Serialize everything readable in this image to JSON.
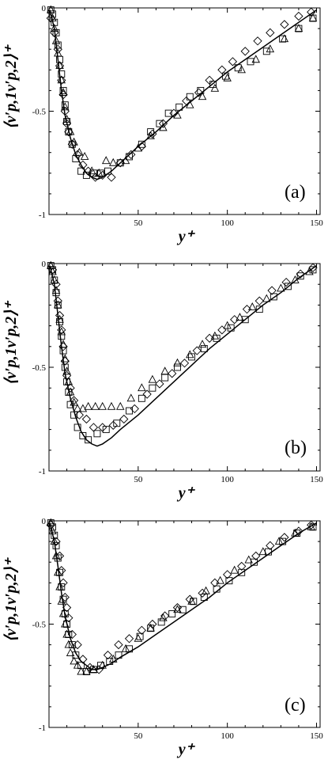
{
  "chart_data": [
    {
      "type": "scatter",
      "panel_label": "(a)",
      "xlabel": "y⁺",
      "ylabel": "⟨v′p,1v′p,2⟩⁺",
      "xlim": [
        0,
        152
      ],
      "ylim": [
        -1,
        0
      ],
      "x_ticks": [
        50,
        100,
        150
      ],
      "y_ticks": [
        0,
        -0.5,
        -1
      ],
      "y_tick_labels": [
        "0",
        "-0.5",
        "-1"
      ],
      "grid": false,
      "legend": "none",
      "line": {
        "x": [
          0.5,
          3,
          5,
          7,
          9,
          12,
          15,
          18,
          21,
          24,
          27,
          30,
          35,
          40,
          50,
          60,
          70,
          80,
          90,
          100,
          110,
          120,
          130,
          140,
          150
        ],
        "y": [
          -0.01,
          -0.1,
          -0.25,
          -0.4,
          -0.52,
          -0.63,
          -0.71,
          -0.76,
          -0.8,
          -0.82,
          -0.83,
          -0.82,
          -0.79,
          -0.75,
          -0.67,
          -0.6,
          -0.52,
          -0.45,
          -0.38,
          -0.31,
          -0.25,
          -0.19,
          -0.13,
          -0.07,
          -0.01
        ]
      },
      "series": [
        {
          "marker": "square",
          "x": [
            1,
            2,
            3,
            4,
            5,
            6,
            7,
            8,
            9,
            10,
            11,
            13,
            15,
            18,
            21,
            25,
            29,
            33,
            40,
            45,
            52,
            57,
            62,
            67,
            73,
            79,
            85,
            92,
            99,
            106,
            113,
            122,
            131,
            140,
            148
          ],
          "y": [
            -0.01,
            -0.03,
            -0.07,
            -0.12,
            -0.18,
            -0.25,
            -0.32,
            -0.4,
            -0.47,
            -0.55,
            -0.6,
            -0.66,
            -0.73,
            -0.79,
            -0.81,
            -0.8,
            -0.8,
            -0.79,
            -0.75,
            -0.72,
            -0.66,
            -0.6,
            -0.56,
            -0.51,
            -0.48,
            -0.43,
            -0.4,
            -0.37,
            -0.33,
            -0.29,
            -0.26,
            -0.21,
            -0.15,
            -0.1,
            -0.05
          ]
        },
        {
          "marker": "triangle",
          "x": [
            1,
            2,
            3,
            4,
            5,
            6,
            7,
            8,
            9,
            10,
            12,
            14,
            17,
            20,
            24,
            28,
            32,
            36,
            43,
            50,
            57,
            64,
            72,
            79,
            86,
            93,
            100,
            108,
            116,
            124,
            132,
            140,
            148
          ],
          "y": [
            -0.01,
            -0.05,
            -0.1,
            -0.16,
            -0.22,
            -0.28,
            -0.35,
            -0.41,
            -0.48,
            -0.54,
            -0.6,
            -0.65,
            -0.7,
            -0.72,
            -0.79,
            -0.8,
            -0.74,
            -0.75,
            -0.74,
            -0.68,
            -0.62,
            -0.58,
            -0.52,
            -0.47,
            -0.43,
            -0.39,
            -0.34,
            -0.3,
            -0.25,
            -0.2,
            -0.15,
            -0.1,
            -0.05
          ]
        },
        {
          "marker": "diamond",
          "x": [
            1,
            3,
            5,
            6,
            7,
            8,
            9,
            10,
            11,
            13,
            16,
            19,
            22,
            26,
            30,
            35,
            40,
            46,
            52,
            58,
            64,
            70,
            77,
            84,
            90,
            97,
            103,
            110,
            117,
            124,
            132,
            140,
            147
          ],
          "y": [
            -0.05,
            -0.12,
            -0.2,
            -0.28,
            -0.35,
            -0.42,
            -0.5,
            -0.56,
            -0.6,
            -0.66,
            -0.71,
            -0.76,
            -0.79,
            -0.82,
            -0.81,
            -0.82,
            -0.75,
            -0.71,
            -0.67,
            -0.61,
            -0.56,
            -0.51,
            -0.45,
            -0.41,
            -0.35,
            -0.3,
            -0.26,
            -0.21,
            -0.16,
            -0.12,
            -0.08,
            -0.04,
            -0.02
          ]
        }
      ]
    },
    {
      "type": "scatter",
      "panel_label": "(b)",
      "xlabel": "y⁺",
      "ylabel": "⟨v′p,1v′p,2⟩⁺",
      "xlim": [
        0,
        152
      ],
      "ylim": [
        -1,
        0
      ],
      "x_ticks": [
        50,
        100,
        150
      ],
      "y_ticks": [
        0,
        -0.5,
        -1
      ],
      "y_tick_labels": [
        "0",
        "-0.5",
        "-1"
      ],
      "grid": false,
      "legend": "none",
      "line": {
        "x": [
          0.5,
          3,
          5,
          7,
          9,
          12,
          15,
          18,
          21,
          24,
          27,
          30,
          35,
          40,
          50,
          60,
          70,
          80,
          90,
          100,
          110,
          120,
          130,
          140,
          150
        ],
        "y": [
          -0.01,
          -0.1,
          -0.25,
          -0.4,
          -0.53,
          -0.65,
          -0.74,
          -0.81,
          -0.85,
          -0.87,
          -0.88,
          -0.87,
          -0.84,
          -0.8,
          -0.73,
          -0.65,
          -0.57,
          -0.49,
          -0.41,
          -0.34,
          -0.27,
          -0.2,
          -0.14,
          -0.07,
          -0.01
        ]
      },
      "series": [
        {
          "marker": "square",
          "x": [
            1,
            2,
            3,
            4,
            5,
            6,
            7,
            8,
            9,
            10,
            11,
            12,
            14,
            16,
            19,
            22,
            27,
            32,
            38,
            45,
            52,
            58,
            65,
            72,
            80,
            87,
            94,
            102,
            110,
            118,
            126,
            134,
            141,
            148
          ],
          "y": [
            -0.01,
            -0.03,
            -0.08,
            -0.14,
            -0.2,
            -0.28,
            -0.35,
            -0.42,
            -0.5,
            -0.57,
            -0.62,
            -0.68,
            -0.73,
            -0.79,
            -0.83,
            -0.85,
            -0.82,
            -0.8,
            -0.77,
            -0.71,
            -0.65,
            -0.6,
            -0.55,
            -0.5,
            -0.45,
            -0.41,
            -0.36,
            -0.31,
            -0.27,
            -0.22,
            -0.16,
            -0.11,
            -0.06,
            -0.03
          ]
        },
        {
          "marker": "triangle",
          "x": [
            1,
            2,
            3,
            4,
            5,
            6,
            7,
            8,
            9,
            10,
            11,
            12,
            14,
            16,
            19,
            22,
            26,
            30,
            35,
            40,
            46,
            52,
            58,
            65,
            72,
            79,
            86,
            93,
            100,
            107,
            114,
            122,
            130,
            138,
            146
          ],
          "y": [
            -0.01,
            -0.04,
            -0.08,
            -0.13,
            -0.2,
            -0.27,
            -0.33,
            -0.39,
            -0.46,
            -0.52,
            -0.57,
            -0.62,
            -0.67,
            -0.7,
            -0.7,
            -0.69,
            -0.69,
            -0.69,
            -0.69,
            -0.69,
            -0.65,
            -0.6,
            -0.56,
            -0.52,
            -0.48,
            -0.44,
            -0.39,
            -0.35,
            -0.3,
            -0.26,
            -0.21,
            -0.17,
            -0.12,
            -0.08,
            -0.04
          ]
        },
        {
          "marker": "diamond",
          "x": [
            2,
            4,
            5,
            6,
            7,
            8,
            9,
            10,
            12,
            14,
            17,
            21,
            25,
            30,
            36,
            42,
            48,
            55,
            62,
            69,
            76,
            83,
            90,
            97,
            104,
            111,
            118,
            125,
            133,
            141,
            148
          ],
          "y": [
            -0.03,
            -0.1,
            -0.18,
            -0.25,
            -0.32,
            -0.4,
            -0.47,
            -0.54,
            -0.6,
            -0.66,
            -0.73,
            -0.75,
            -0.79,
            -0.79,
            -0.78,
            -0.75,
            -0.7,
            -0.63,
            -0.58,
            -0.53,
            -0.48,
            -0.42,
            -0.36,
            -0.32,
            -0.27,
            -0.22,
            -0.18,
            -0.13,
            -0.09,
            -0.05,
            -0.02
          ]
        }
      ]
    },
    {
      "type": "scatter",
      "panel_label": "(c)",
      "xlabel": "y⁺",
      "ylabel": "⟨v′p,1v′p,2⟩⁺",
      "xlim": [
        0,
        152
      ],
      "ylim": [
        -1,
        0
      ],
      "x_ticks": [
        50,
        100,
        150
      ],
      "y_ticks": [
        0,
        -0.5,
        -1
      ],
      "y_tick_labels": [
        "0",
        "-0.5",
        "-1"
      ],
      "grid": false,
      "legend": "none",
      "line": {
        "x": [
          0.5,
          3,
          5,
          7,
          9,
          12,
          15,
          18,
          21,
          24,
          27,
          30,
          35,
          40,
          50,
          60,
          70,
          80,
          90,
          100,
          110,
          120,
          130,
          140,
          150
        ],
        "y": [
          -0.01,
          -0.1,
          -0.22,
          -0.35,
          -0.46,
          -0.57,
          -0.64,
          -0.68,
          -0.7,
          -0.72,
          -0.72,
          -0.71,
          -0.69,
          -0.66,
          -0.61,
          -0.55,
          -0.49,
          -0.43,
          -0.37,
          -0.3,
          -0.24,
          -0.18,
          -0.12,
          -0.06,
          -0.01
        ]
      },
      "series": [
        {
          "marker": "square",
          "x": [
            1,
            2,
            3,
            4,
            5,
            6,
            7,
            8,
            9,
            10,
            11,
            13,
            15,
            18,
            21,
            25,
            29,
            34,
            39,
            45,
            51,
            57,
            63,
            69,
            75,
            81,
            87,
            94,
            101,
            108,
            115,
            123,
            131,
            139,
            148
          ],
          "y": [
            -0.01,
            -0.03,
            -0.07,
            -0.12,
            -0.18,
            -0.25,
            -0.32,
            -0.38,
            -0.45,
            -0.5,
            -0.55,
            -0.6,
            -0.65,
            -0.7,
            -0.73,
            -0.72,
            -0.7,
            -0.68,
            -0.65,
            -0.62,
            -0.56,
            -0.52,
            -0.49,
            -0.45,
            -0.43,
            -0.39,
            -0.37,
            -0.33,
            -0.29,
            -0.25,
            -0.2,
            -0.15,
            -0.1,
            -0.06,
            -0.03
          ]
        },
        {
          "marker": "triangle",
          "x": [
            1,
            2,
            3,
            4,
            5,
            6,
            7,
            8,
            9,
            10,
            11,
            12,
            14,
            16,
            18,
            21,
            25,
            30,
            36,
            43,
            50,
            57,
            64,
            72,
            80,
            88,
            96,
            104,
            112,
            120,
            129,
            138,
            147
          ],
          "y": [
            -0.01,
            -0.05,
            -0.1,
            -0.17,
            -0.25,
            -0.32,
            -0.39,
            -0.45,
            -0.5,
            -0.55,
            -0.6,
            -0.64,
            -0.68,
            -0.7,
            -0.73,
            -0.73,
            -0.72,
            -0.7,
            -0.67,
            -0.62,
            -0.57,
            -0.52,
            -0.47,
            -0.43,
            -0.39,
            -0.34,
            -0.29,
            -0.24,
            -0.19,
            -0.15,
            -0.1,
            -0.06,
            -0.03
          ]
        },
        {
          "marker": "diamond",
          "x": [
            1,
            4,
            6,
            7,
            8,
            9,
            10,
            11,
            13,
            16,
            19,
            23,
            28,
            33,
            39,
            45,
            52,
            58,
            65,
            72,
            79,
            86,
            93,
            100,
            108,
            116,
            124,
            132,
            140,
            147
          ],
          "y": [
            -0.02,
            -0.1,
            -0.17,
            -0.24,
            -0.3,
            -0.37,
            -0.42,
            -0.47,
            -0.55,
            -0.6,
            -0.67,
            -0.71,
            -0.72,
            -0.65,
            -0.6,
            -0.57,
            -0.53,
            -0.5,
            -0.46,
            -0.42,
            -0.38,
            -0.35,
            -0.3,
            -0.26,
            -0.22,
            -0.17,
            -0.12,
            -0.08,
            -0.05,
            -0.02
          ]
        }
      ]
    }
  ]
}
